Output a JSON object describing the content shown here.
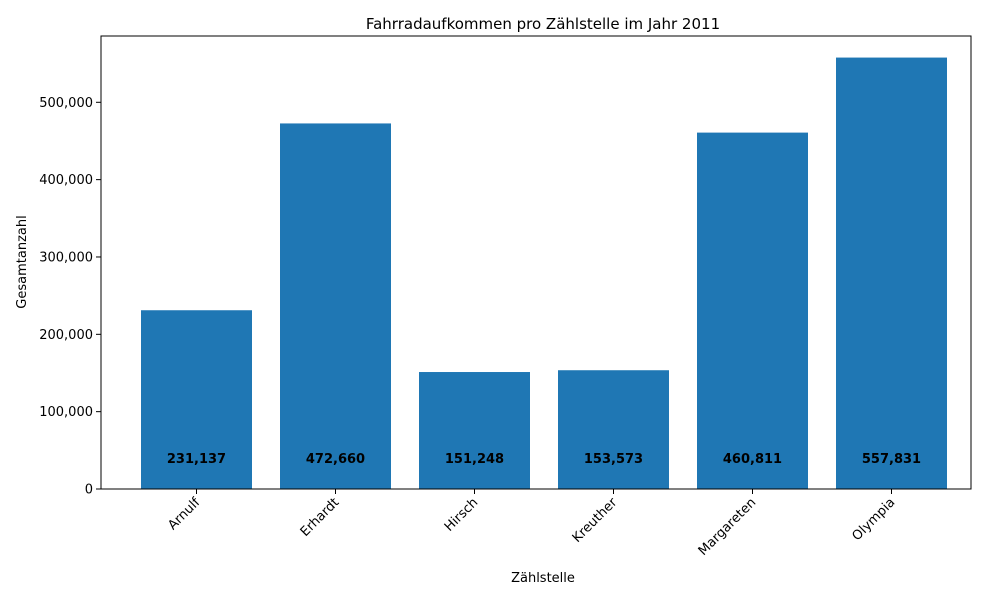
{
  "chart_data": {
    "type": "bar",
    "title": "Fahrradaufkommen pro Zählstelle im Jahr 2011",
    "xlabel": "Zählstelle",
    "ylabel": "Gesamtanzahl",
    "categories": [
      "Arnulf",
      "Erhardt",
      "Hirsch",
      "Kreuther",
      "Margareten",
      "Olympia"
    ],
    "values": [
      231137,
      472660,
      151248,
      153573,
      460811,
      557831
    ],
    "data_labels": [
      "231,137",
      "472,660",
      "151,248",
      "153,573",
      "460,811",
      "557,831"
    ],
    "ylim": [
      0,
      585717
    ],
    "yticks": [
      0,
      100000,
      200000,
      300000,
      400000,
      500000
    ],
    "ytick_labels": [
      "0",
      "100,000",
      "200,000",
      "300,000",
      "400,000",
      "500,000"
    ],
    "bar_color": "#1f77b4",
    "grid": false,
    "legend": "none"
  }
}
